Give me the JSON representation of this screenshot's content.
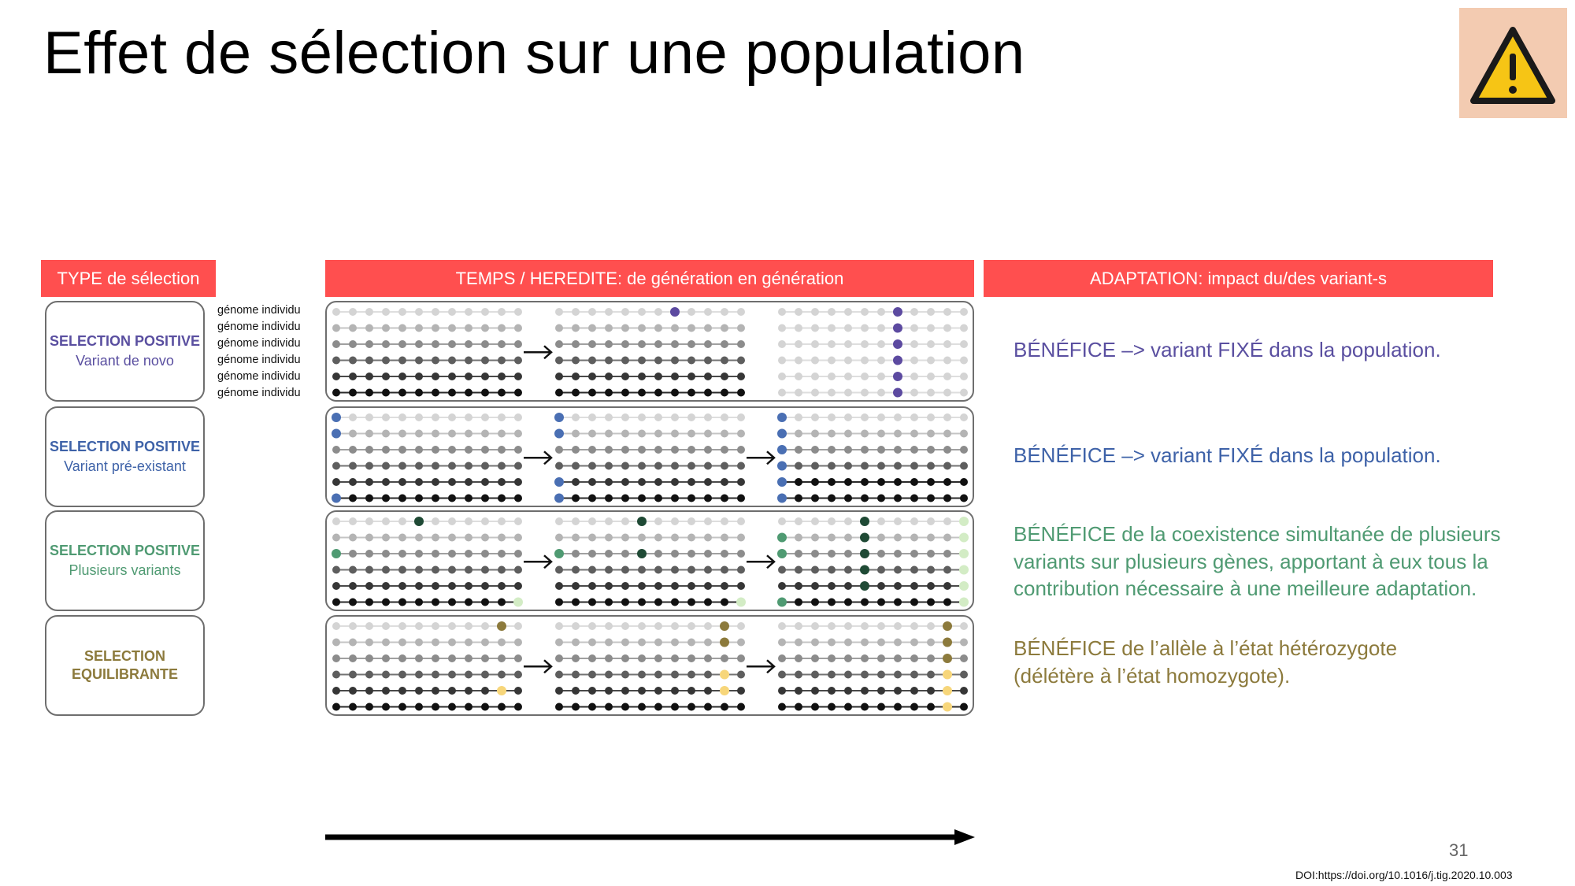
{
  "title": "Effet de sélection sur une population",
  "warning_icon": {
    "name": "warning-icon",
    "box_color": "#f3cbb1",
    "fill": "#f6c515"
  },
  "headers": {
    "type": "TYPE de sélection",
    "temps": "TEMPS / HEREDITE: de génération en génération",
    "adaptation": "ADAPTATION: impact du/des variant-s",
    "color": "#ff4f4f"
  },
  "genome_label": "génome individu",
  "selection_types": [
    {
      "title": "SELECTION POSITIVE",
      "subtitle": "Variant de novo",
      "color": "#5a4fa0"
    },
    {
      "title": "SELECTION POSITIVE",
      "subtitle": "Variant pré-existant",
      "color": "#3e62a8"
    },
    {
      "title": "SELECTION POSITIVE",
      "subtitle": "Plusieurs variants",
      "color": "#4f9a72"
    },
    {
      "title": "SELECTION\nEQUILIBRANTE",
      "subtitle": "",
      "color": "#8c7a3c"
    }
  ],
  "adaptation_texts": [
    {
      "text": "BÉNÉFICE –> variant FIXÉ dans la population.",
      "color": "#5a4fa0"
    },
    {
      "text": "BÉNÉFICE –> variant FIXÉ dans la population.",
      "color": "#3e62a8"
    },
    {
      "text": "BÉNÉFICE de la coexistence simultanée de plusieurs variants sur plusieurs gènes, apportant à eux tous la contribution nécessaire à une meilleure adaptation.",
      "color": "#4f9a72"
    },
    {
      "text": "BÉNÉFICE de l’allèle à l’état hétérozygote (délétère à l’état homozygote).",
      "color": "#8c7a3c"
    }
  ],
  "variant_colors": {
    "de_novo": "#5c4aa0",
    "pre_existing": "#4a6fb3",
    "multi_green": "#4f9a72",
    "multi_dark": "#1f4a35",
    "multi_light": "#d3ecc5",
    "balancing_olive": "#8c7a3c",
    "balancing_yellow": "#f7d67a"
  },
  "page_number": "31",
  "doi": "DOI:https://doi.org/10.1016/j.tig.2020.10.003"
}
